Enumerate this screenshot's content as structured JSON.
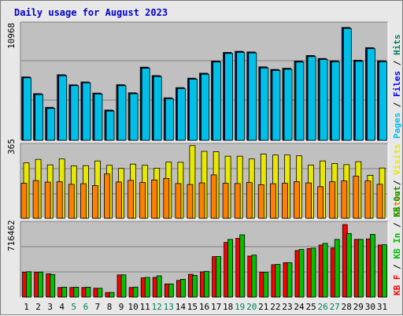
{
  "title": "Daily usage for August 2023",
  "colors": {
    "frame_bg": "#e8e8e8",
    "plot_bg": "#c0c0c0",
    "title": "#0000cc",
    "hits": "#00805c",
    "files": "#0000ff",
    "pages": "#00c0e8",
    "visits": "#e8e800",
    "sites": "#ff8000",
    "kbf": "#ff0000",
    "kbin": "#00c000",
    "kbout": "#00a000",
    "weekend_tick": "#00805c",
    "weekday_tick": "#000000"
  },
  "chart_data": [
    {
      "type": "bar",
      "name": "hits-files-pages",
      "ymax_label": "10968",
      "ymax": 10968,
      "categories": [
        "1",
        "2",
        "3",
        "4",
        "5",
        "6",
        "7",
        "8",
        "9",
        "10",
        "11",
        "12",
        "13",
        "14",
        "15",
        "16",
        "17",
        "18",
        "19",
        "20",
        "21",
        "22",
        "23",
        "24",
        "25",
        "26",
        "27",
        "28",
        "29",
        "30",
        "31"
      ],
      "weekend": [
        5,
        6,
        12,
        13,
        19,
        20,
        26,
        27
      ],
      "legend": [
        "Pages",
        "Files",
        "Hits"
      ],
      "series": [
        {
          "name": "Hits",
          "values": [
            6040,
            4450,
            3140,
            6250,
            5290,
            5560,
            4500,
            2880,
            5300,
            4530,
            6970,
            6170,
            4050,
            5020,
            5920,
            6390,
            7560,
            8380,
            8480,
            8420,
            7000,
            6750,
            6870,
            7550,
            8080,
            7800,
            7580,
            10760,
            7630,
            8830,
            7580
          ]
        },
        {
          "name": "Files",
          "values": [
            6000,
            4400,
            3080,
            6200,
            5250,
            5520,
            4460,
            2830,
            5250,
            4480,
            6920,
            6120,
            4000,
            4970,
            5870,
            6340,
            7510,
            8330,
            8430,
            8370,
            6950,
            6700,
            6820,
            7500,
            8030,
            7750,
            7530,
            10700,
            7580,
            8780,
            7530
          ]
        },
        {
          "name": "Pages",
          "values": [
            5950,
            4350,
            3030,
            6150,
            5200,
            5470,
            4410,
            2780,
            5200,
            4430,
            6870,
            6070,
            3950,
            4920,
            5820,
            6290,
            7460,
            8280,
            8380,
            8320,
            6900,
            6650,
            6770,
            7450,
            7980,
            7700,
            7480,
            10650,
            7530,
            8730,
            7480
          ]
        }
      ]
    },
    {
      "type": "bar",
      "name": "visits-sites",
      "ymax_label": "365",
      "ymax": 365,
      "categories": [
        "1",
        "2",
        "3",
        "4",
        "5",
        "6",
        "7",
        "8",
        "9",
        "10",
        "11",
        "12",
        "13",
        "14",
        "15",
        "16",
        "17",
        "18",
        "19",
        "20",
        "21",
        "22",
        "23",
        "24",
        "25",
        "26",
        "27",
        "28",
        "29",
        "30",
        "31"
      ],
      "legend": [
        "Visits",
        "Sites"
      ],
      "series": [
        {
          "name": "Visits",
          "values": [
            282,
            300,
            272,
            302,
            267,
            268,
            292,
            270,
            254,
            276,
            270,
            255,
            286,
            285,
            370,
            341,
            339,
            316,
            316,
            302,
            327,
            322,
            322,
            318,
            271,
            292,
            279,
            273,
            288,
            219,
            256
          ]
        },
        {
          "name": "Sites",
          "values": [
            178,
            192,
            184,
            186,
            173,
            176,
            167,
            226,
            185,
            193,
            182,
            195,
            203,
            177,
            172,
            180,
            221,
            178,
            177,
            182,
            171,
            176,
            178,
            186,
            180,
            161,
            186,
            190,
            214,
            190,
            173
          ]
        }
      ]
    },
    {
      "type": "bar",
      "name": "kbytes",
      "ymax_label": "716462",
      "ymax": 716462,
      "categories": [
        "1",
        "2",
        "3",
        "4",
        "5",
        "6",
        "7",
        "8",
        "9",
        "10",
        "11",
        "12",
        "13",
        "14",
        "15",
        "16",
        "17",
        "18",
        "19",
        "20",
        "21",
        "22",
        "23",
        "24",
        "25",
        "26",
        "27",
        "28",
        "29",
        "30",
        "31"
      ],
      "legend": [
        "KB F",
        "KB In",
        "KB Out",
        "Sites",
        "Visits"
      ],
      "series": [
        {
          "name": "KB F",
          "values": [
            245000,
            245000,
            230000,
            95000,
            95000,
            95000,
            87000,
            45000,
            220000,
            95000,
            190000,
            195000,
            130000,
            165000,
            225000,
            250000,
            400000,
            540000,
            580000,
            405000,
            245000,
            320000,
            340000,
            460000,
            480000,
            515000,
            485000,
            716462,
            570000,
            575000,
            515000
          ]
        },
        {
          "name": "KB In",
          "values": [
            251000,
            248000,
            223000,
            98000,
            98000,
            98000,
            87000,
            45000,
            220000,
            99000,
            195000,
            210000,
            130000,
            176000,
            215000,
            255000,
            400000,
            570000,
            615000,
            415000,
            244000,
            323000,
            340000,
            470000,
            484000,
            530000,
            570000,
            628000,
            570000,
            620000,
            517000
          ]
        }
      ]
    }
  ]
}
